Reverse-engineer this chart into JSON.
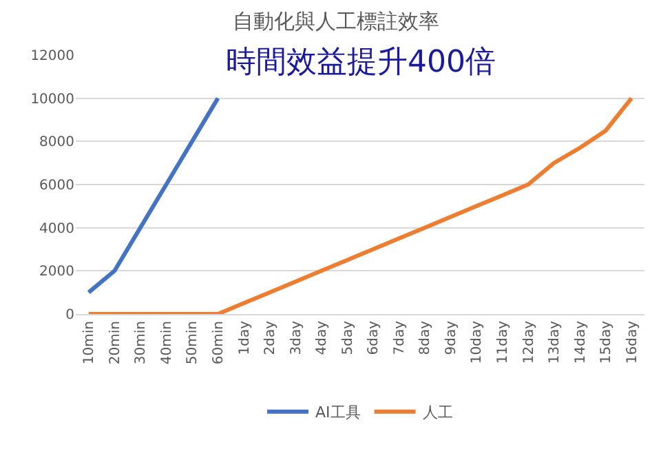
{
  "chart_data": {
    "type": "line",
    "title": "自動化與人工標註效率",
    "annotations": [
      "時間效益提升400倍"
    ],
    "categories": [
      "10min",
      "20min",
      "30min",
      "40min",
      "50min",
      "60min",
      "1day",
      "2day",
      "3day",
      "4day",
      "5day",
      "6day",
      "7day",
      "8day",
      "9day",
      "10day",
      "11day",
      "12day",
      "13day",
      "14day",
      "15day",
      "16day"
    ],
    "series": [
      {
        "name": "AI工具",
        "color": "#4472c4",
        "values": [
          1000,
          2000,
          4000,
          6000,
          8000,
          10000,
          null,
          null,
          null,
          null,
          null,
          null,
          null,
          null,
          null,
          null,
          null,
          null,
          null,
          null,
          null,
          null
        ]
      },
      {
        "name": "人工",
        "color": "#ed7d31",
        "values": [
          0,
          0,
          0,
          0,
          0,
          0,
          500,
          1000,
          1500,
          2000,
          2500,
          3000,
          3500,
          4000,
          4500,
          5000,
          5500,
          6000,
          7000,
          7700,
          8500,
          10000
        ]
      }
    ],
    "ylim": [
      0,
      12000
    ],
    "yticks": [
      0,
      2000,
      4000,
      6000,
      8000,
      10000,
      12000
    ],
    "grid": "y",
    "legend": "bottom",
    "marker": "none",
    "line_style": "solid"
  }
}
